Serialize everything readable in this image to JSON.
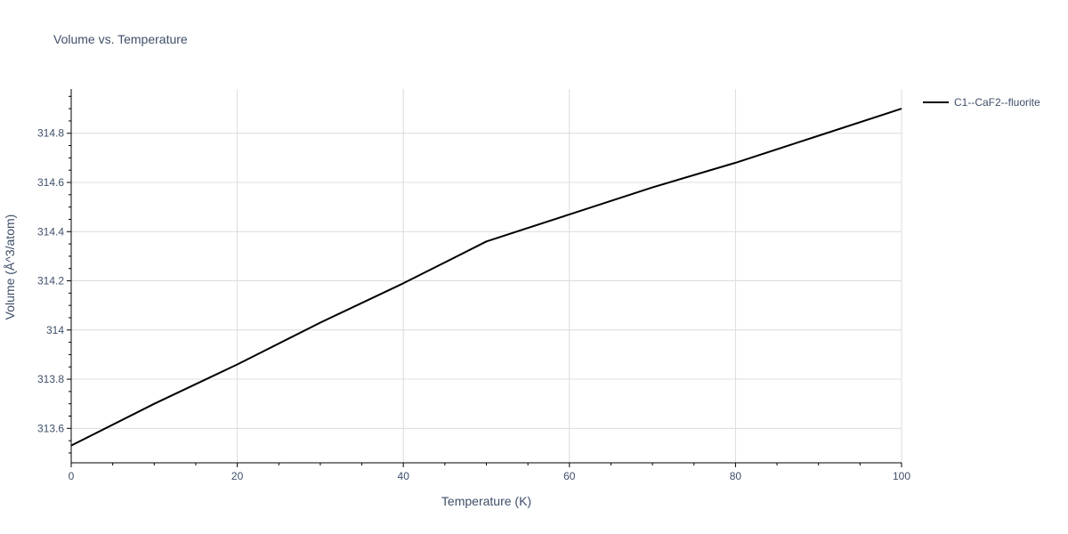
{
  "chart_data": {
    "type": "line",
    "title": "Volume vs. Temperature",
    "xlabel": "Temperature (K)",
    "ylabel": "Volume (Å^3/atom)",
    "xlim": [
      0,
      100
    ],
    "ylim": [
      313.46,
      314.98
    ],
    "x_ticks": [
      0,
      20,
      40,
      60,
      80,
      100
    ],
    "y_ticks": [
      313.6,
      313.8,
      314,
      314.2,
      314.4,
      314.6,
      314.8
    ],
    "y_tick_labels": [
      "313.6",
      "313.8",
      "314",
      "314.2",
      "314.4",
      "314.6",
      "314.8"
    ],
    "grid": true,
    "legend_position": "top-right",
    "series": [
      {
        "name": "C1--CaF2--fluorite",
        "color": "#000000",
        "x": [
          0,
          10,
          20,
          30,
          40,
          50,
          60,
          70,
          80,
          90,
          100
        ],
        "y": [
          313.53,
          313.7,
          313.86,
          314.03,
          314.19,
          314.36,
          314.47,
          314.58,
          314.68,
          314.79,
          314.9
        ]
      }
    ]
  }
}
